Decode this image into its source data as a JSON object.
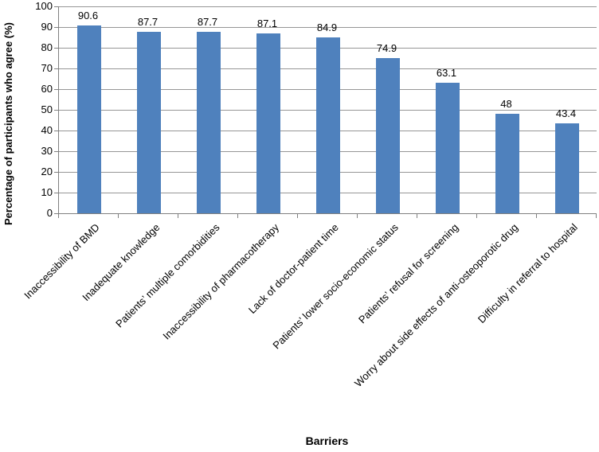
{
  "chart_data": {
    "type": "bar",
    "title": "",
    "xlabel": "Barriers",
    "ylabel": "Percentage of participants who agree (%)",
    "categories": [
      "Inaccessibility of BMD",
      "Inadequate knowledge",
      "Patients’ multiple comorbidities",
      "Inaccessibility of pharmacotherapy",
      "Lack of doctor-patient time",
      "Patients’ lower socio-economic status",
      "Patients’ refusal for screening",
      "Worry about side effects of anti-osteoporotic drug",
      "Difficulty in referral to hospital"
    ],
    "values": [
      90.6,
      87.7,
      87.7,
      87.1,
      84.9,
      74.9,
      63.1,
      48,
      43.4
    ],
    "value_labels": [
      "90.6",
      "87.7",
      "87.7",
      "87.1",
      "84.9",
      "74.9",
      "63.1",
      "48",
      "43.4"
    ],
    "ylim": [
      0,
      100
    ],
    "yticks": [
      0,
      10,
      20,
      30,
      40,
      50,
      60,
      70,
      80,
      90,
      100
    ],
    "grid": "horizontal",
    "legend": "none",
    "category_label_rotation_deg": 45,
    "bar_color": "#4F81BD",
    "gridline_color": "#969696",
    "axis_color": "#808080",
    "text_color": "#000000"
  }
}
